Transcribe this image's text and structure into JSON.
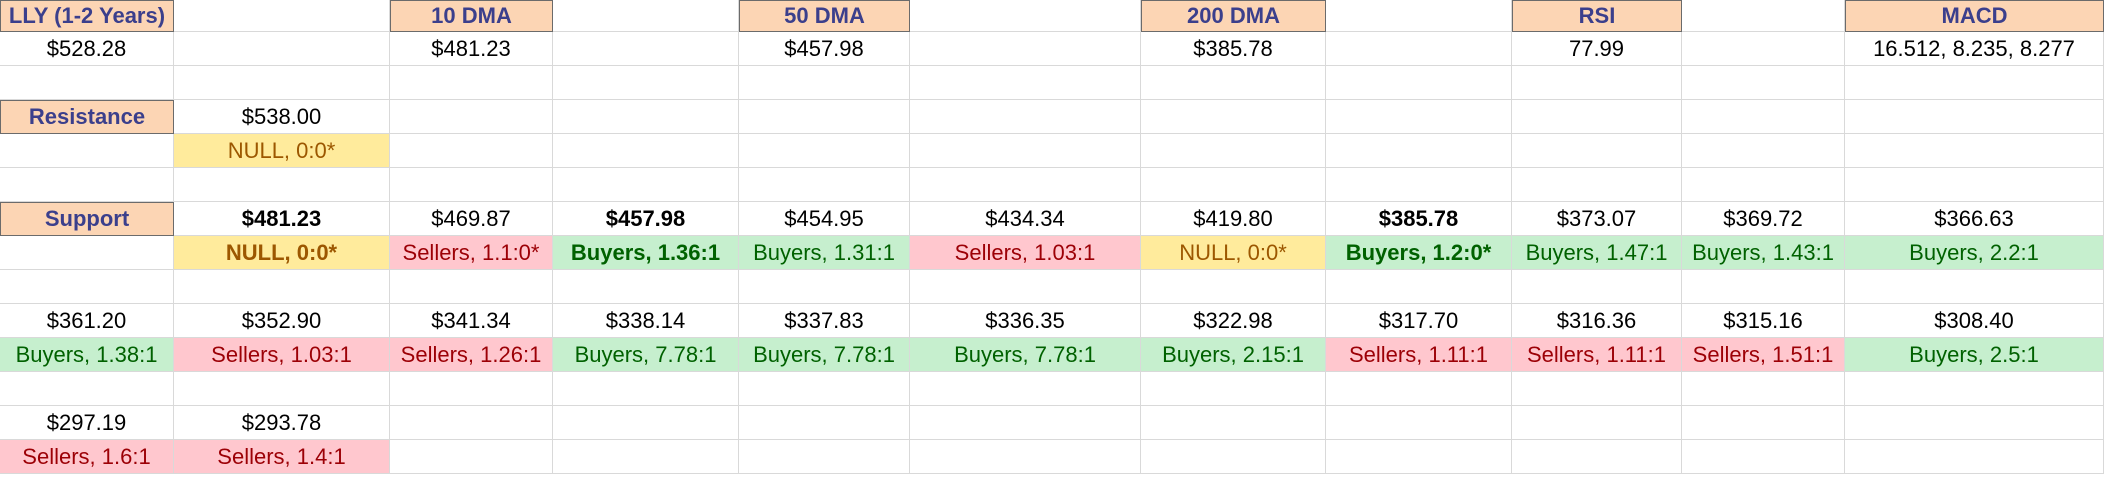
{
  "rows": [
    [
      {
        "text": "LLY (1-2 Years)",
        "style": "header"
      },
      {
        "text": ""
      },
      {
        "text": "10 DMA",
        "style": "header"
      },
      {
        "text": ""
      },
      {
        "text": "50 DMA",
        "style": "header"
      },
      {
        "text": ""
      },
      {
        "text": "200 DMA",
        "style": "header"
      },
      {
        "text": ""
      },
      {
        "text": "RSI",
        "style": "header"
      },
      {
        "text": ""
      },
      {
        "text": "MACD",
        "style": "header"
      }
    ],
    [
      {
        "text": "$528.28"
      },
      {
        "text": ""
      },
      {
        "text": "$481.23"
      },
      {
        "text": ""
      },
      {
        "text": "$457.98"
      },
      {
        "text": ""
      },
      {
        "text": "$385.78"
      },
      {
        "text": ""
      },
      {
        "text": "77.99"
      },
      {
        "text": ""
      },
      {
        "text": "16.512, 8.235, 8.277"
      }
    ],
    [
      {
        "text": ""
      },
      {
        "text": ""
      },
      {
        "text": ""
      },
      {
        "text": ""
      },
      {
        "text": ""
      },
      {
        "text": ""
      },
      {
        "text": ""
      },
      {
        "text": ""
      },
      {
        "text": ""
      },
      {
        "text": ""
      },
      {
        "text": ""
      }
    ],
    [
      {
        "text": "Resistance",
        "style": "header"
      },
      {
        "text": "$538.00"
      },
      {
        "text": ""
      },
      {
        "text": ""
      },
      {
        "text": ""
      },
      {
        "text": ""
      },
      {
        "text": ""
      },
      {
        "text": ""
      },
      {
        "text": ""
      },
      {
        "text": ""
      },
      {
        "text": ""
      }
    ],
    [
      {
        "text": ""
      },
      {
        "text": "NULL, 0:0*",
        "style": "null"
      },
      {
        "text": ""
      },
      {
        "text": ""
      },
      {
        "text": ""
      },
      {
        "text": ""
      },
      {
        "text": ""
      },
      {
        "text": ""
      },
      {
        "text": ""
      },
      {
        "text": ""
      },
      {
        "text": ""
      }
    ],
    [
      {
        "text": ""
      },
      {
        "text": ""
      },
      {
        "text": ""
      },
      {
        "text": ""
      },
      {
        "text": ""
      },
      {
        "text": ""
      },
      {
        "text": ""
      },
      {
        "text": ""
      },
      {
        "text": ""
      },
      {
        "text": ""
      },
      {
        "text": ""
      }
    ],
    [
      {
        "text": "Support",
        "style": "header"
      },
      {
        "text": "$481.23",
        "style": "bold"
      },
      {
        "text": "$469.87"
      },
      {
        "text": "$457.98",
        "style": "bold"
      },
      {
        "text": "$454.95"
      },
      {
        "text": "$434.34"
      },
      {
        "text": "$419.80"
      },
      {
        "text": "$385.78",
        "style": "bold"
      },
      {
        "text": "$373.07"
      },
      {
        "text": "$369.72"
      },
      {
        "text": "$366.63"
      }
    ],
    [
      {
        "text": ""
      },
      {
        "text": "NULL, 0:0*",
        "style": "null bold"
      },
      {
        "text": "Sellers, 1.1:0*",
        "style": "sellers"
      },
      {
        "text": "Buyers, 1.36:1",
        "style": "buyers bold"
      },
      {
        "text": "Buyers, 1.31:1",
        "style": "buyers"
      },
      {
        "text": "Sellers, 1.03:1",
        "style": "sellers"
      },
      {
        "text": "NULL, 0:0*",
        "style": "null"
      },
      {
        "text": "Buyers, 1.2:0*",
        "style": "buyers bold"
      },
      {
        "text": "Buyers, 1.47:1",
        "style": "buyers"
      },
      {
        "text": "Buyers, 1.43:1",
        "style": "buyers"
      },
      {
        "text": "Buyers, 2.2:1",
        "style": "buyers"
      }
    ],
    [
      {
        "text": ""
      },
      {
        "text": ""
      },
      {
        "text": ""
      },
      {
        "text": ""
      },
      {
        "text": ""
      },
      {
        "text": ""
      },
      {
        "text": ""
      },
      {
        "text": ""
      },
      {
        "text": ""
      },
      {
        "text": ""
      },
      {
        "text": ""
      }
    ],
    [
      {
        "text": "$361.20"
      },
      {
        "text": "$352.90"
      },
      {
        "text": "$341.34"
      },
      {
        "text": "$338.14"
      },
      {
        "text": "$337.83"
      },
      {
        "text": "$336.35"
      },
      {
        "text": "$322.98"
      },
      {
        "text": "$317.70"
      },
      {
        "text": "$316.36"
      },
      {
        "text": "$315.16"
      },
      {
        "text": "$308.40"
      }
    ],
    [
      {
        "text": "Buyers, 1.38:1",
        "style": "buyers"
      },
      {
        "text": "Sellers, 1.03:1",
        "style": "sellers"
      },
      {
        "text": "Sellers, 1.26:1",
        "style": "sellers"
      },
      {
        "text": "Buyers, 7.78:1",
        "style": "buyers"
      },
      {
        "text": "Buyers, 7.78:1",
        "style": "buyers"
      },
      {
        "text": "Buyers, 7.78:1",
        "style": "buyers"
      },
      {
        "text": "Buyers, 2.15:1",
        "style": "buyers"
      },
      {
        "text": "Sellers, 1.11:1",
        "style": "sellers"
      },
      {
        "text": "Sellers, 1.11:1",
        "style": "sellers"
      },
      {
        "text": "Sellers, 1.51:1",
        "style": "sellers"
      },
      {
        "text": "Buyers, 2.5:1",
        "style": "buyers"
      }
    ],
    [
      {
        "text": ""
      },
      {
        "text": ""
      },
      {
        "text": ""
      },
      {
        "text": ""
      },
      {
        "text": ""
      },
      {
        "text": ""
      },
      {
        "text": ""
      },
      {
        "text": ""
      },
      {
        "text": ""
      },
      {
        "text": ""
      },
      {
        "text": ""
      }
    ],
    [
      {
        "text": "$297.19"
      },
      {
        "text": "$293.78"
      },
      {
        "text": ""
      },
      {
        "text": ""
      },
      {
        "text": ""
      },
      {
        "text": ""
      },
      {
        "text": ""
      },
      {
        "text": ""
      },
      {
        "text": ""
      },
      {
        "text": ""
      },
      {
        "text": ""
      }
    ],
    [
      {
        "text": "Sellers, 1.6:1",
        "style": "sellers"
      },
      {
        "text": "Sellers, 1.4:1",
        "style": "sellers"
      },
      {
        "text": ""
      },
      {
        "text": ""
      },
      {
        "text": ""
      },
      {
        "text": ""
      },
      {
        "text": ""
      },
      {
        "text": ""
      },
      {
        "text": ""
      },
      {
        "text": ""
      },
      {
        "text": ""
      }
    ]
  ]
}
